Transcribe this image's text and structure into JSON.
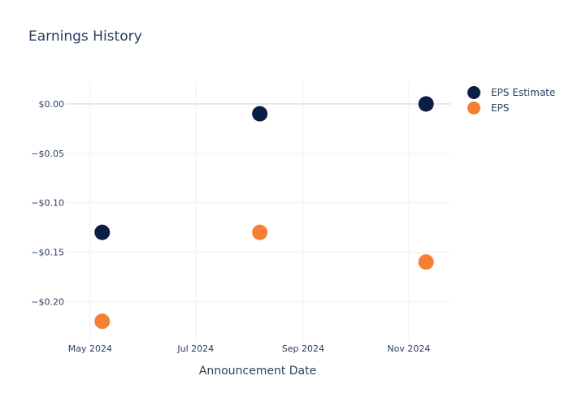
{
  "chart_data": {
    "type": "scatter",
    "title": "Earnings History",
    "xlabel": "Announcement Date",
    "ylabel": "",
    "x_ticks": [
      {
        "date": "2024-05-01",
        "label": "May 2024"
      },
      {
        "date": "2024-07-01",
        "label": "Jul 2024"
      },
      {
        "date": "2024-09-01",
        "label": "Sep 2024"
      },
      {
        "date": "2024-11-01",
        "label": "Nov 2024"
      }
    ],
    "y_ticks": [
      {
        "value": 0.0,
        "label": "$0.00"
      },
      {
        "value": -0.05,
        "label": "−$0.05"
      },
      {
        "value": -0.1,
        "label": "−$0.10"
      },
      {
        "value": -0.15,
        "label": "−$0.15"
      },
      {
        "value": -0.2,
        "label": "−$0.20"
      }
    ],
    "xlim": [
      "2024-04-17",
      "2024-11-25"
    ],
    "ylim": [
      -0.24,
      0.023
    ],
    "grid": true,
    "legend_position": "top-right",
    "series": [
      {
        "name": "EPS Estimate",
        "color": "#0b1f44",
        "points": [
          {
            "x": "2024-05-08",
            "y": -0.13
          },
          {
            "x": "2024-08-07",
            "y": -0.01
          },
          {
            "x": "2024-11-11",
            "y": 0.0
          }
        ]
      },
      {
        "name": "EPS",
        "color": "#f58034",
        "points": [
          {
            "x": "2024-05-08",
            "y": -0.22
          },
          {
            "x": "2024-08-07",
            "y": -0.13
          },
          {
            "x": "2024-11-11",
            "y": -0.16
          }
        ]
      }
    ]
  }
}
